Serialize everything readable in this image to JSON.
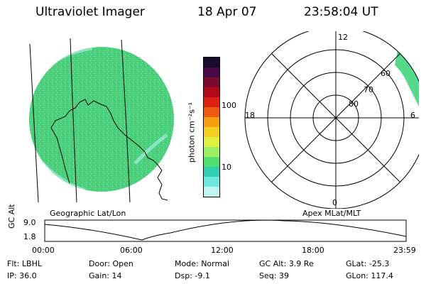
{
  "header": {
    "title": "Ultraviolet Imager",
    "date": "18 Apr 07",
    "time": "23:58:04 UT"
  },
  "colorbar": {
    "unit_label": "photon cm⁻²s⁻¹",
    "ticks": [
      "100",
      "10"
    ],
    "colors": [
      "#1a0a2e",
      "#4a0a4a",
      "#7a0a30",
      "#b00a1a",
      "#e02010",
      "#f05a10",
      "#f5a010",
      "#f5d020",
      "#e0f040",
      "#9ef060",
      "#50e070",
      "#30d0b0",
      "#70e8e0",
      "#c0f4f0"
    ]
  },
  "polar": {
    "labels": {
      "top": "12",
      "left": "18",
      "right": "6",
      "bottom": "0"
    },
    "lat_labels": [
      "60",
      "70",
      "80"
    ]
  },
  "map_captions": {
    "left": "Geographic Lat/Lon",
    "right": "Apex MLat/MLT"
  },
  "altitude_plot": {
    "ylabel": "GC Alt",
    "ticks": [
      "9.0",
      "1.8"
    ],
    "x_ticks": [
      "00:00",
      "06:00",
      "12:00",
      "18:00",
      "23:59"
    ]
  },
  "info": {
    "row1": [
      {
        "label": "Flt:",
        "value": "LBHL"
      },
      {
        "label": "Door:",
        "value": "Open"
      },
      {
        "label": "Mode:",
        "value": "Normal"
      },
      {
        "label": "GC Alt:",
        "value": "3.9 Re"
      },
      {
        "label": "GLat:",
        "value": "-25.3"
      }
    ],
    "row2": [
      {
        "label": "IP:",
        "value": "36.0"
      },
      {
        "label": "Gain:",
        "value": "14"
      },
      {
        "label": "Dsp:",
        "value": "-9.1"
      },
      {
        "label": "Seq:",
        "value": "39"
      },
      {
        "label": "GLon:",
        "value": "117.4"
      }
    ]
  },
  "colors": {
    "disk_main": "#4ccf7a",
    "disk_speck": "#6fe0d8",
    "aurora": "#55d98a"
  }
}
